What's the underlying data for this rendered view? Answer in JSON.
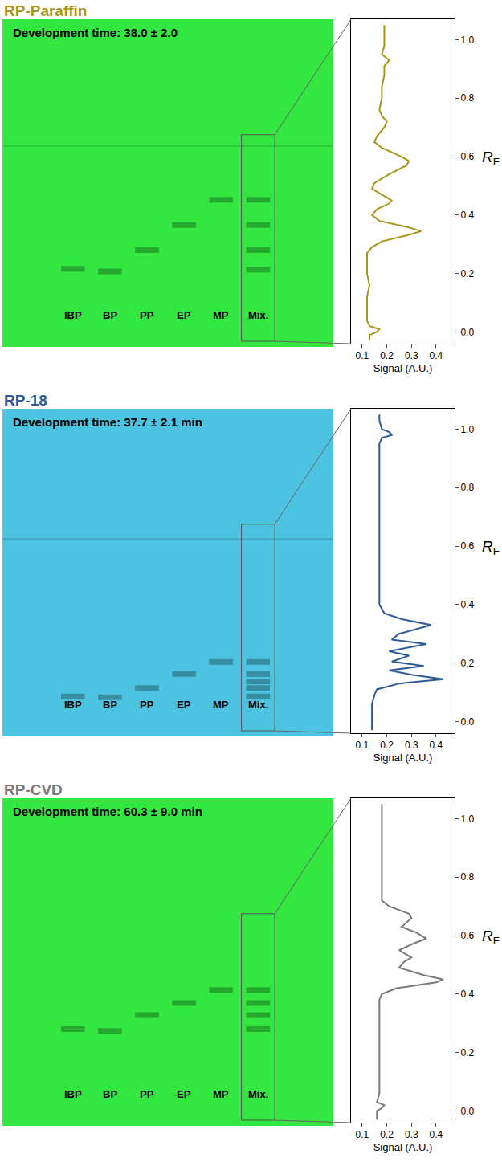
{
  "chart_data": [
    {
      "title": "RP-Paraffin",
      "color": "#a8961a",
      "plate": {
        "color": "#33e640",
        "annotation": "Development time: 38.0 ± 2.0",
        "ylim": [
          -0.07,
          1.69
        ],
        "solvent_front": 1.01,
        "tick_labels": false,
        "lanes": [
          {
            "label": "IBP",
            "spots": [
              0.35
            ]
          },
          {
            "label": "BP",
            "spots": [
              0.335
            ]
          },
          {
            "label": "PP",
            "spots": [
              0.45
            ]
          },
          {
            "label": "EP",
            "spots": [
              0.585
            ]
          },
          {
            "label": "MP",
            "spots": [
              0.72
            ]
          },
          {
            "label": "Mix.",
            "spots": [
              0.345,
              0.45,
              0.585,
              0.72
            ]
          }
        ]
      },
      "profile": {
        "type": "line",
        "xlabel": "Signal (A.U.)",
        "ylabel": {
          "main": "R",
          "sub": "F"
        },
        "xlim": [
          0.055,
          0.475
        ],
        "xticks": [
          0.1,
          0.2,
          0.3,
          0.4
        ],
        "ylim": [
          -0.04,
          1.07
        ],
        "yticks": [
          {
            "value": 0,
            "label": "0.0"
          },
          {
            "value": 0.2,
            "label": "0.2"
          },
          {
            "value": 0.4,
            "label": "0.4"
          },
          {
            "value": 0.6,
            "label": "0.6"
          },
          {
            "value": 0.8,
            "label": "0.8"
          },
          {
            "value": 1,
            "label": "1.0"
          }
        ],
        "x": [
          0.13,
          0.13,
          0.16,
          0.17,
          0.13,
          0.12,
          0.12,
          0.12,
          0.13,
          0.12,
          0.12,
          0.12,
          0.14,
          0.18,
          0.28,
          0.34,
          0.28,
          0.17,
          0.14,
          0.16,
          0.21,
          0.22,
          0.18,
          0.14,
          0.15,
          0.21,
          0.28,
          0.29,
          0.26,
          0.18,
          0.15,
          0.16,
          0.19,
          0.2,
          0.18,
          0.17,
          0.18,
          0.18,
          0.19,
          0.19,
          0.21,
          0.18,
          0.19,
          0.19,
          0.19
        ],
        "y": [
          -0.03,
          -0.01,
          0.0,
          0.01,
          0.02,
          0.04,
          0.08,
          0.12,
          0.16,
          0.2,
          0.24,
          0.27,
          0.29,
          0.31,
          0.33,
          0.345,
          0.36,
          0.38,
          0.4,
          0.42,
          0.44,
          0.45,
          0.47,
          0.49,
          0.51,
          0.54,
          0.57,
          0.585,
          0.6,
          0.63,
          0.65,
          0.67,
          0.7,
          0.72,
          0.74,
          0.76,
          0.8,
          0.84,
          0.88,
          0.91,
          0.93,
          0.95,
          0.98,
          1.01,
          1.05
        ]
      }
    },
    {
      "title": "RP-18",
      "color": "#2e5a96",
      "plate": {
        "color": "#4cc3e0",
        "annotation": "Development time: 37.7 ± 2.1 min",
        "ylim": [
          -0.07,
          1.69
        ],
        "solvent_front": 0.99,
        "tick_labels": false,
        "lanes": [
          {
            "label": "IBP",
            "spots": [
              0.145
            ]
          },
          {
            "label": "BP",
            "spots": [
              0.14
            ]
          },
          {
            "label": "PP",
            "spots": [
              0.19
            ]
          },
          {
            "label": "EP",
            "spots": [
              0.265
            ]
          },
          {
            "label": "MP",
            "spots": [
              0.33
            ]
          },
          {
            "label": "Mix.",
            "spots": [
              0.145,
              0.19,
              0.225,
              0.265,
              0.33
            ]
          }
        ]
      },
      "profile": {
        "type": "line",
        "xlabel": "Signal (A.U.)",
        "ylabel": {
          "main": "R",
          "sub": "F"
        },
        "xlim": [
          0.055,
          0.475
        ],
        "xticks": [
          0.1,
          0.2,
          0.3,
          0.4
        ],
        "ylim": [
          -0.04,
          1.07
        ],
        "yticks": [
          {
            "value": 0,
            "label": "0.0"
          },
          {
            "value": 0.2,
            "label": "0.2"
          },
          {
            "value": 0.4,
            "label": "0.4"
          },
          {
            "value": 0.6,
            "label": "0.6"
          },
          {
            "value": 0.8,
            "label": "0.8"
          },
          {
            "value": 1,
            "label": "1.0"
          }
        ],
        "x": [
          0.14,
          0.14,
          0.14,
          0.15,
          0.16,
          0.25,
          0.43,
          0.3,
          0.21,
          0.35,
          0.22,
          0.29,
          0.21,
          0.36,
          0.22,
          0.25,
          0.38,
          0.26,
          0.19,
          0.17,
          0.17,
          0.17,
          0.17,
          0.17,
          0.17,
          0.17,
          0.18,
          0.22,
          0.21,
          0.18,
          0.17,
          0.17
        ],
        "y": [
          -0.03,
          0.02,
          0.06,
          0.09,
          0.11,
          0.13,
          0.145,
          0.16,
          0.175,
          0.19,
          0.205,
          0.225,
          0.24,
          0.265,
          0.28,
          0.3,
          0.33,
          0.35,
          0.37,
          0.4,
          0.5,
          0.6,
          0.7,
          0.8,
          0.9,
          0.95,
          0.97,
          0.98,
          0.99,
          1.0,
          1.03,
          1.05
        ]
      }
    },
    {
      "title": "RP-CVD",
      "color": "#7a7a7a",
      "plate": {
        "color": "#33e640",
        "annotation": "Development time: 60.3 ± 9.0 min",
        "ylim": [
          -0.07,
          1.69
        ],
        "tick_labels": false,
        "lanes": [
          {
            "label": "IBP",
            "spots": [
              0.45
            ]
          },
          {
            "label": "BP",
            "spots": [
              0.44
            ]
          },
          {
            "label": "PP",
            "spots": [
              0.525
            ]
          },
          {
            "label": "EP",
            "spots": [
              0.59
            ]
          },
          {
            "label": "MP",
            "spots": [
              0.66
            ]
          },
          {
            "label": "Mix.",
            "spots": [
              0.45,
              0.525,
              0.59,
              0.66
            ]
          }
        ]
      },
      "profile": {
        "type": "line",
        "xlabel": "Signal (A.U.)",
        "ylabel": {
          "main": "R",
          "sub": "F"
        },
        "xlim": [
          0.055,
          0.475
        ],
        "xticks": [
          0.1,
          0.2,
          0.3,
          0.4
        ],
        "ylim": [
          -0.04,
          1.07
        ],
        "yticks": [
          {
            "value": 0,
            "label": "0.0"
          },
          {
            "value": 0.2,
            "label": "0.2"
          },
          {
            "value": 0.4,
            "label": "0.4"
          },
          {
            "value": 0.6,
            "label": "0.6"
          },
          {
            "value": 0.8,
            "label": "0.8"
          },
          {
            "value": 1,
            "label": "1.0"
          }
        ],
        "x": [
          0.16,
          0.16,
          0.18,
          0.19,
          0.16,
          0.17,
          0.17,
          0.17,
          0.17,
          0.17,
          0.17,
          0.17,
          0.17,
          0.18,
          0.24,
          0.4,
          0.43,
          0.35,
          0.25,
          0.27,
          0.3,
          0.25,
          0.3,
          0.36,
          0.32,
          0.26,
          0.3,
          0.29,
          0.21,
          0.18,
          0.18,
          0.18,
          0.18,
          0.18,
          0.18,
          0.18,
          0.18
        ],
        "y": [
          -0.03,
          0.0,
          0.01,
          0.02,
          0.03,
          0.06,
          0.1,
          0.15,
          0.2,
          0.25,
          0.3,
          0.35,
          0.38,
          0.4,
          0.42,
          0.44,
          0.45,
          0.465,
          0.49,
          0.51,
          0.525,
          0.55,
          0.57,
          0.59,
          0.61,
          0.63,
          0.66,
          0.675,
          0.7,
          0.72,
          0.76,
          0.8,
          0.85,
          0.9,
          0.95,
          1.0,
          1.05
        ]
      }
    }
  ]
}
